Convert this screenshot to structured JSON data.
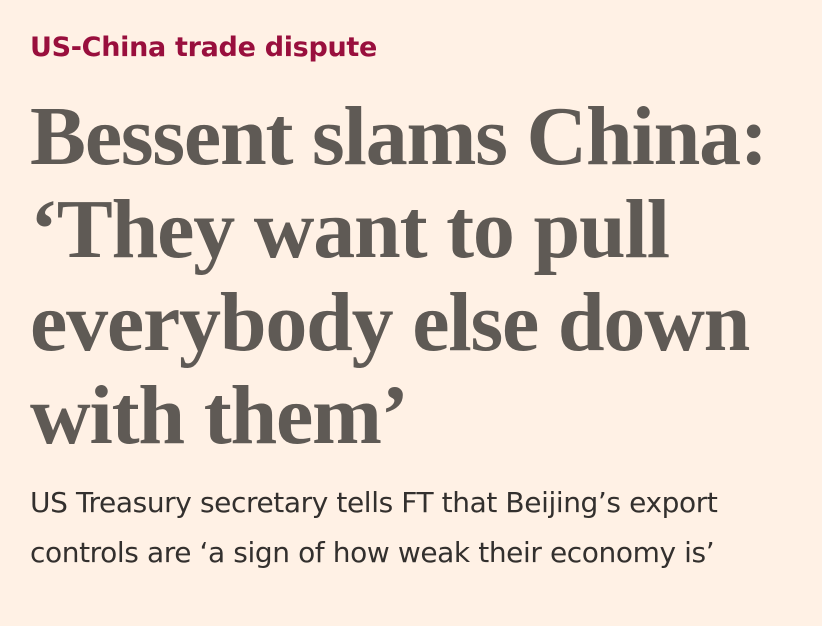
{
  "topic": "US-China trade dispute",
  "headline": "Bessent slams China: ‘They want to pull everybody else down with them’",
  "standfirst": "US Treasury secretary tells FT that Beijing’s export controls are ‘a sign of how weak their economy is’"
}
